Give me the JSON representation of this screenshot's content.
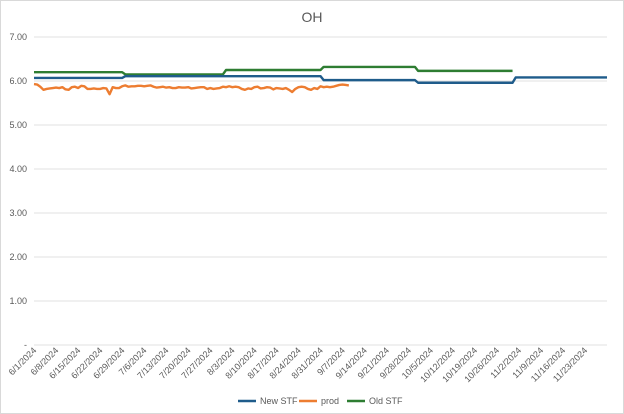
{
  "chart_data": {
    "type": "line",
    "title": "OH",
    "xlabel": "",
    "ylabel": "",
    "x_tick_labels": [
      "6/1/2024",
      "6/8/2024",
      "6/15/2024",
      "6/22/2024",
      "6/29/2024",
      "7/6/2024",
      "7/13/2024",
      "7/20/2024",
      "7/27/2024",
      "8/3/2024",
      "8/10/2024",
      "8/17/2024",
      "8/24/2024",
      "8/31/2024",
      "9/7/2024",
      "9/14/2024",
      "9/21/2024",
      "9/28/2024",
      "10/5/2024",
      "10/12/2024",
      "10/19/2024",
      "10/26/2024",
      "11/2/2024",
      "11/9/2024",
      "11/16/2024",
      "11/23/2024"
    ],
    "y_tick_labels": [
      "-",
      "1.00",
      "2.00",
      "3.00",
      "4.00",
      "5.00",
      "6.00",
      "7.00"
    ],
    "ylim": [
      0,
      7
    ],
    "xlim": [
      "6/1/2024",
      "11/30/2024"
    ],
    "grid": true,
    "legend_position": "bottom",
    "series": [
      {
        "name": "New STF",
        "color": "#1f5c8b",
        "points": [
          [
            "6/1/2024",
            6.07
          ],
          [
            "6/29/2024",
            6.07
          ],
          [
            "6/30/2024",
            6.11
          ],
          [
            "8/31/2024",
            6.11
          ],
          [
            "9/1/2024",
            6.02
          ],
          [
            "9/30/2024",
            6.02
          ],
          [
            "10/1/2024",
            5.96
          ],
          [
            "10/31/2024",
            5.96
          ],
          [
            "11/1/2024",
            6.08
          ],
          [
            "11/30/2024",
            6.08
          ]
        ]
      },
      {
        "name": "prod",
        "color": "#ed7d31",
        "points": [
          [
            "6/1/2024",
            5.93
          ],
          [
            "6/2/2024",
            5.92
          ],
          [
            "6/3/2024",
            5.87
          ],
          [
            "6/4/2024",
            5.8
          ],
          [
            "6/5/2024",
            5.82
          ],
          [
            "6/6/2024",
            5.83
          ],
          [
            "6/7/2024",
            5.84
          ],
          [
            "6/8/2024",
            5.85
          ],
          [
            "6/9/2024",
            5.84
          ],
          [
            "6/10/2024",
            5.86
          ],
          [
            "6/11/2024",
            5.81
          ],
          [
            "6/12/2024",
            5.8
          ],
          [
            "6/13/2024",
            5.86
          ],
          [
            "6/14/2024",
            5.87
          ],
          [
            "6/15/2024",
            5.84
          ],
          [
            "6/16/2024",
            5.89
          ],
          [
            "6/17/2024",
            5.88
          ],
          [
            "6/18/2024",
            5.82
          ],
          [
            "6/19/2024",
            5.82
          ],
          [
            "6/20/2024",
            5.83
          ],
          [
            "6/21/2024",
            5.82
          ],
          [
            "6/22/2024",
            5.82
          ],
          [
            "6/23/2024",
            5.84
          ],
          [
            "6/24/2024",
            5.83
          ],
          [
            "6/25/2024",
            5.7
          ],
          [
            "6/26/2024",
            5.86
          ],
          [
            "6/27/2024",
            5.84
          ],
          [
            "6/28/2024",
            5.84
          ],
          [
            "6/29/2024",
            5.88
          ],
          [
            "6/30/2024",
            5.9
          ],
          [
            "7/1/2024",
            5.87
          ],
          [
            "7/2/2024",
            5.88
          ],
          [
            "7/3/2024",
            5.88
          ],
          [
            "7/4/2024",
            5.89
          ],
          [
            "7/5/2024",
            5.89
          ],
          [
            "7/6/2024",
            5.88
          ],
          [
            "7/7/2024",
            5.89
          ],
          [
            "7/8/2024",
            5.9
          ],
          [
            "7/9/2024",
            5.87
          ],
          [
            "7/10/2024",
            5.85
          ],
          [
            "7/11/2024",
            5.86
          ],
          [
            "7/12/2024",
            5.87
          ],
          [
            "7/13/2024",
            5.85
          ],
          [
            "7/14/2024",
            5.86
          ],
          [
            "7/15/2024",
            5.84
          ],
          [
            "7/16/2024",
            5.84
          ],
          [
            "7/17/2024",
            5.86
          ],
          [
            "7/18/2024",
            5.85
          ],
          [
            "7/19/2024",
            5.85
          ],
          [
            "7/20/2024",
            5.86
          ],
          [
            "7/21/2024",
            5.83
          ],
          [
            "7/22/2024",
            5.84
          ],
          [
            "7/23/2024",
            5.85
          ],
          [
            "7/24/2024",
            5.86
          ],
          [
            "7/25/2024",
            5.86
          ],
          [
            "7/26/2024",
            5.82
          ],
          [
            "7/27/2024",
            5.84
          ],
          [
            "7/28/2024",
            5.82
          ],
          [
            "7/29/2024",
            5.83
          ],
          [
            "7/30/2024",
            5.84
          ],
          [
            "7/31/2024",
            5.87
          ],
          [
            "8/1/2024",
            5.86
          ],
          [
            "8/2/2024",
            5.88
          ],
          [
            "8/3/2024",
            5.86
          ],
          [
            "8/4/2024",
            5.87
          ],
          [
            "8/5/2024",
            5.86
          ],
          [
            "8/6/2024",
            5.82
          ],
          [
            "8/7/2024",
            5.8
          ],
          [
            "8/8/2024",
            5.83
          ],
          [
            "8/9/2024",
            5.82
          ],
          [
            "8/10/2024",
            5.86
          ],
          [
            "8/11/2024",
            5.87
          ],
          [
            "8/12/2024",
            5.83
          ],
          [
            "8/13/2024",
            5.84
          ],
          [
            "8/14/2024",
            5.86
          ],
          [
            "8/15/2024",
            5.85
          ],
          [
            "8/16/2024",
            5.81
          ],
          [
            "8/17/2024",
            5.84
          ],
          [
            "8/18/2024",
            5.83
          ],
          [
            "8/19/2024",
            5.82
          ],
          [
            "8/20/2024",
            5.84
          ],
          [
            "8/21/2024",
            5.8
          ],
          [
            "8/22/2024",
            5.75
          ],
          [
            "8/23/2024",
            5.82
          ],
          [
            "8/24/2024",
            5.86
          ],
          [
            "8/25/2024",
            5.87
          ],
          [
            "8/26/2024",
            5.86
          ],
          [
            "8/27/2024",
            5.82
          ],
          [
            "8/28/2024",
            5.8
          ],
          [
            "8/29/2024",
            5.84
          ],
          [
            "8/30/2024",
            5.82
          ],
          [
            "8/31/2024",
            5.88
          ],
          [
            "9/1/2024",
            5.86
          ],
          [
            "9/2/2024",
            5.87
          ],
          [
            "9/3/2024",
            5.86
          ],
          [
            "9/4/2024",
            5.87
          ],
          [
            "9/5/2024",
            5.89
          ],
          [
            "9/6/2024",
            5.91
          ],
          [
            "9/7/2024",
            5.92
          ],
          [
            "9/8/2024",
            5.91
          ],
          [
            "9/9/2024",
            5.9
          ]
        ]
      },
      {
        "name": "Old STF",
        "color": "#2e7d32",
        "points": [
          [
            "6/1/2024",
            6.2
          ],
          [
            "6/29/2024",
            6.2
          ],
          [
            "6/30/2024",
            6.15
          ],
          [
            "7/31/2024",
            6.15
          ],
          [
            "8/1/2024",
            6.25
          ],
          [
            "8/31/2024",
            6.25
          ],
          [
            "9/1/2024",
            6.32
          ],
          [
            "9/30/2024",
            6.32
          ],
          [
            "10/1/2024",
            6.23
          ],
          [
            "10/31/2024",
            6.23
          ]
        ]
      }
    ]
  }
}
